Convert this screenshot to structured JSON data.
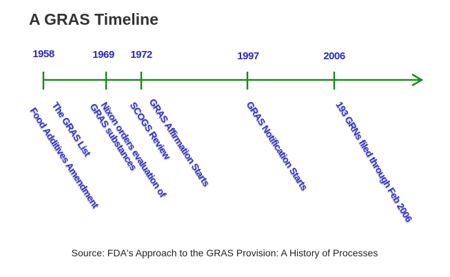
{
  "title": "A GRAS Timeline",
  "years": [
    "1958",
    "1969",
    "1972",
    "1997",
    "2006"
  ],
  "events": [
    "Food Additives Amendment",
    "The GRAS List",
    [
      "Nixon orders evaluation of",
      "GRAS substances"
    ],
    "SCOGS Review",
    "GRAS Affirmation Starts",
    "GRAS Notification Starts",
    "193 GRNs filed through Feb 2006"
  ],
  "source": "Source: FDA's Approach to the GRAS Provision: A History of Processes"
}
